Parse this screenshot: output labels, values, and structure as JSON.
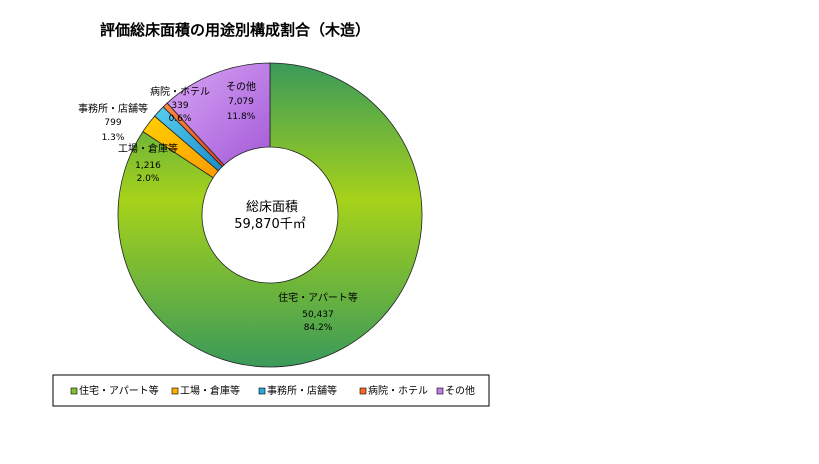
{
  "chart_data": {
    "type": "pie",
    "title": "評価総床面積の用途別構成割合（木造）",
    "center_label": "総床面積",
    "center_value": "59,870千㎡",
    "legend_position": "bottom",
    "categories": [
      "住宅・アパート等",
      "工場・倉庫等",
      "事務所・店舗等",
      "病院・ホテル",
      "その他"
    ],
    "values": [
      50437,
      1216,
      799,
      339,
      7079
    ],
    "value_labels": [
      "50,437",
      "1,216",
      "799",
      "339",
      "7,079"
    ],
    "percents": [
      "84.2%",
      "2.0%",
      "1.3%",
      "0.6%",
      "11.8%"
    ],
    "colors": [
      "#7fc236",
      "#ffb000",
      "#2aa8d8",
      "#ff6a2a",
      "#c07fe8"
    ]
  }
}
